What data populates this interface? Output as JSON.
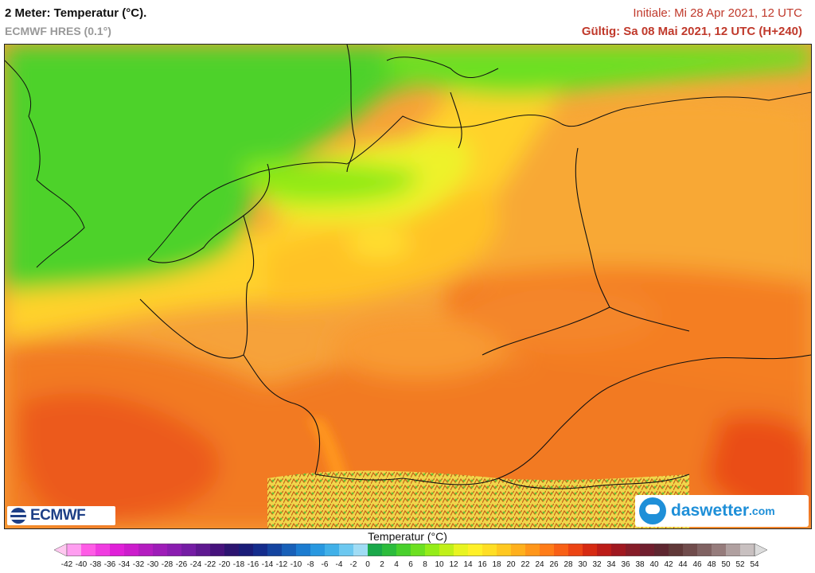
{
  "header": {
    "title": "2 Meter: Temperatur (°C).",
    "subtitle": "ECMWF HRES (0.1°)",
    "initiale": "Initiale: Mi 28 Apr 2021, 12 UTC",
    "gueltig": "Gültig: Sa 08 Mai 2021, 12 UTC (H+240)"
  },
  "logos": {
    "ecmwf": "ECMWF",
    "daswetter_name": "daswetter",
    "daswetter_domain": ".com"
  },
  "legend": {
    "title": "Temperatur (°C)",
    "ticks": [
      "-42",
      "-40",
      "-38",
      "-36",
      "-34",
      "-32",
      "-30",
      "-28",
      "-26",
      "-24",
      "-22",
      "-20",
      "-18",
      "-16",
      "-14",
      "-12",
      "-10",
      "-8",
      "-6",
      "-4",
      "-2",
      "0",
      "2",
      "4",
      "6",
      "8",
      "10",
      "12",
      "14",
      "16",
      "18",
      "20",
      "22",
      "24",
      "26",
      "28",
      "30",
      "32",
      "34",
      "36",
      "38",
      "40",
      "42",
      "44",
      "46",
      "48",
      "50",
      "52",
      "54"
    ],
    "colors": [
      "#ffc8f0",
      "#ff9ef0",
      "#ff5ce6",
      "#f03ce0",
      "#e020d8",
      "#cc1ccc",
      "#b41cc0",
      "#9e1cb8",
      "#8a1cb0",
      "#741ca4",
      "#5e1890",
      "#46127c",
      "#2c1470",
      "#1a1c78",
      "#142c8c",
      "#1444a0",
      "#1860b8",
      "#1c7cd0",
      "#2898e0",
      "#40b0e8",
      "#6cc8f0",
      "#a0dcf4",
      "#1aa84a",
      "#2cbc3c",
      "#48d02c",
      "#6ce020",
      "#94ec18",
      "#c0f018",
      "#e8f420",
      "#fff028",
      "#ffde24",
      "#ffc820",
      "#ffb01c",
      "#ff961a",
      "#ff7c18",
      "#f86016",
      "#ec4414",
      "#d62a12",
      "#bc1c18",
      "#a01820",
      "#861c28",
      "#701e2e",
      "#5e2630",
      "#603838",
      "#704c4c",
      "#806262",
      "#967c7c",
      "#b0a0a0",
      "#c8c0c0",
      "#dcdcdc"
    ]
  }
}
